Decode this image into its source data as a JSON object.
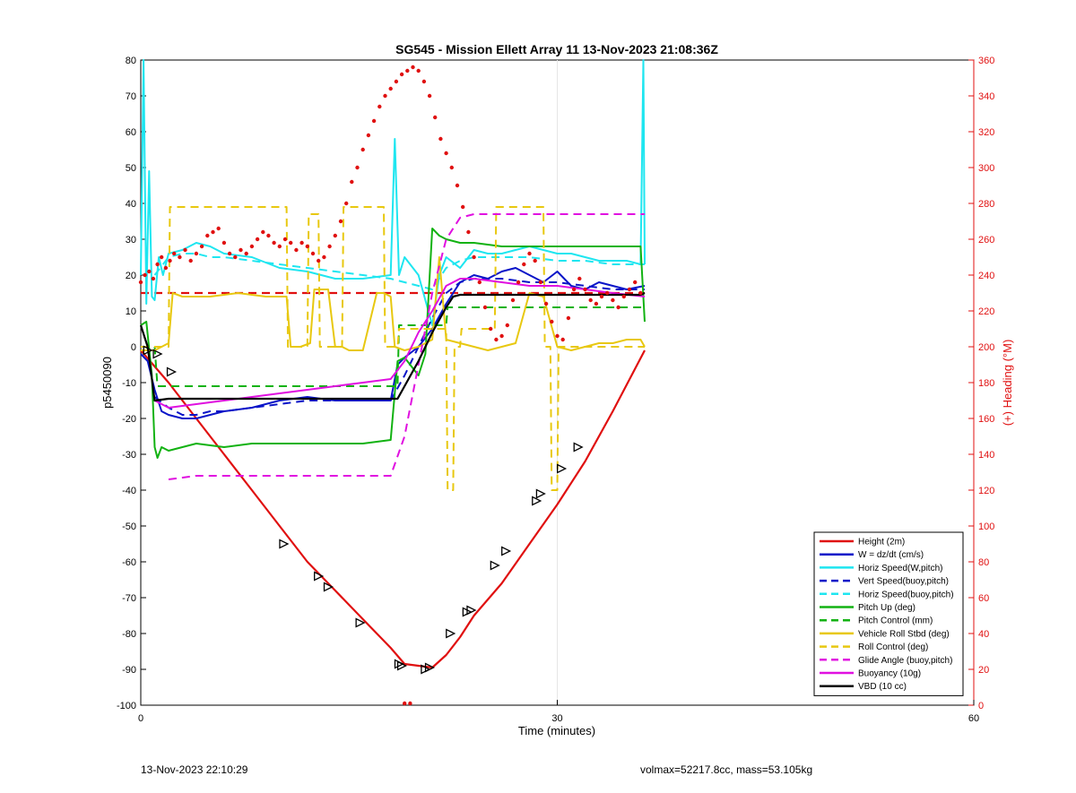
{
  "footer": {
    "timestamp": "13-Nov-2023 22:10:29",
    "volmax_mass": "volmax=52217.8cc, mass=53.105kg"
  },
  "chart_data": {
    "type": "line",
    "title": "SG545 - Mission Ellett Array 11 13-Nov-2023 21:08:36Z",
    "xlabel": "Time (minutes)",
    "ylabel": "p5450090",
    "y2label": "(+) Heading (°M)",
    "xlim": [
      0,
      60
    ],
    "ylim": [
      -100,
      80
    ],
    "y2lim": [
      0,
      360
    ],
    "xticks": [
      0,
      30,
      60
    ],
    "yticks": [
      -100,
      -90,
      -80,
      -70,
      -60,
      -50,
      -40,
      -30,
      -20,
      -10,
      0,
      10,
      20,
      30,
      40,
      50,
      60,
      70,
      80
    ],
    "y2ticks": [
      0,
      20,
      40,
      60,
      80,
      100,
      120,
      140,
      160,
      180,
      200,
      220,
      240,
      260,
      280,
      300,
      320,
      340,
      360
    ],
    "grid": "x-only",
    "legend_position": "bottom-right",
    "series": [
      {
        "name": "Height (2m)",
        "color": "#e01010",
        "style": "solid",
        "width": 2.2,
        "x": [
          0,
          2,
          4,
          6,
          8,
          10,
          12,
          14,
          16,
          18,
          19,
          20,
          21,
          22,
          23,
          24,
          26,
          28,
          30,
          32,
          34,
          36.3
        ],
        "y": [
          -1,
          -10,
          -20,
          -30,
          -40,
          -50,
          -60,
          -68,
          -76,
          -84,
          -88.5,
          -89,
          -89.5,
          -86,
          -81,
          -75,
          -66,
          -55,
          -44,
          -32,
          -18,
          -1
        ]
      },
      {
        "name": "W = dz/dt (cm/s)",
        "color": "#0a14c8",
        "style": "solid",
        "width": 2,
        "x": [
          0,
          0.5,
          1,
          1.5,
          2,
          3,
          4,
          5,
          6,
          8,
          10,
          12,
          14,
          16,
          18,
          18.5,
          19,
          20,
          21,
          22,
          23,
          24,
          25,
          26,
          27,
          28,
          29,
          30,
          31,
          32,
          33,
          34,
          35,
          36.3
        ],
        "y": [
          -2,
          -4,
          -12,
          -18,
          -19,
          -20,
          -20,
          -19,
          -18,
          -17,
          -15,
          -14,
          -15,
          -15,
          -15,
          -5,
          -3,
          0,
          5,
          12,
          18,
          20,
          19,
          21,
          22,
          20,
          18,
          21,
          17,
          16,
          18,
          17,
          16,
          17
        ]
      },
      {
        "name": "Horiz Speed(W,pitch)",
        "color": "#1ee6f0",
        "style": "solid",
        "width": 2,
        "x": [
          0,
          0.2,
          0.4,
          0.6,
          0.8,
          1,
          1.3,
          1.6,
          2,
          3,
          4,
          5,
          6,
          8,
          10,
          12,
          14,
          16,
          18,
          18.3,
          18.6,
          19,
          20,
          21,
          21.5,
          22,
          23,
          24,
          25,
          26,
          27,
          28,
          29,
          30,
          31,
          32,
          33,
          34,
          35,
          36,
          36.2,
          36.3
        ],
        "y": [
          20,
          80,
          12,
          49,
          14,
          13,
          25,
          20,
          26,
          27,
          29,
          28,
          26,
          25,
          22,
          21,
          19,
          19,
          20,
          58,
          20,
          25,
          20,
          6,
          20,
          25,
          22,
          27,
          26,
          26,
          27,
          28,
          27,
          26,
          26,
          25,
          24,
          24,
          24,
          23,
          80,
          23
        ]
      },
      {
        "name": "Vert Speed(buoy,pitch)",
        "color": "#0a14c8",
        "style": "dashed",
        "width": 2,
        "x": [
          1,
          2,
          3,
          4,
          5,
          6,
          8,
          10,
          12,
          14,
          16,
          18,
          19,
          20,
          21,
          22,
          23,
          24,
          25,
          26,
          28,
          30,
          32,
          34,
          36.3
        ],
        "y": [
          -14,
          -17,
          -19,
          -19,
          -18,
          -18,
          -17,
          -16,
          -15,
          -15,
          -15,
          -15,
          -8,
          0,
          8,
          15,
          18,
          19,
          19,
          19,
          18,
          18,
          17,
          16,
          16
        ]
      },
      {
        "name": "Horiz Speed(buoy,pitch)",
        "color": "#1ee6f0",
        "style": "dashed",
        "width": 2,
        "x": [
          1,
          2,
          3,
          4,
          5,
          6,
          8,
          10,
          12,
          14,
          16,
          18,
          19,
          20,
          21,
          22,
          23,
          24,
          26,
          28,
          30,
          32,
          34,
          36.3
        ],
        "y": [
          20,
          25,
          26,
          26,
          25,
          25,
          24,
          23,
          22,
          21,
          20,
          19,
          18,
          17,
          16,
          22,
          24,
          25,
          25,
          25,
          24,
          24,
          23,
          23
        ]
      },
      {
        "name": "Pitch Up (deg)",
        "color": "#12b212",
        "style": "solid",
        "width": 2,
        "x": [
          0,
          0.4,
          0.8,
          1,
          1.2,
          1.5,
          2,
          3,
          4,
          6,
          8,
          10,
          12,
          14,
          16,
          18,
          18.5,
          19,
          20,
          20.5,
          21,
          21.5,
          22,
          23,
          24,
          26,
          28,
          30,
          32,
          34,
          36,
          36.3
        ],
        "y": [
          6,
          7,
          -8,
          -28,
          -31,
          -28,
          -29,
          -28,
          -27,
          -28,
          -27,
          -27,
          -27,
          -27,
          -27,
          -26,
          -4,
          -3,
          -8,
          -2,
          33,
          31,
          30,
          29,
          29,
          28,
          28,
          28,
          28,
          28,
          28,
          7
        ]
      },
      {
        "name": "Pitch Control (mm)",
        "color": "#12b212",
        "style": "dashed",
        "width": 2,
        "x": [
          0,
          1,
          1.2,
          18.5,
          18.6,
          22,
          22.1,
          36.3
        ],
        "y": [
          0,
          0,
          -11,
          -11,
          6,
          6,
          11,
          11
        ]
      },
      {
        "name": "Vehicle Roll Stbd (deg)",
        "color": "#e8c810",
        "style": "solid",
        "width": 2,
        "x": [
          0,
          1,
          2,
          2.3,
          3,
          5,
          7,
          9,
          10.5,
          10.8,
          11.5,
          12.2,
          12.5,
          13.5,
          14,
          14.5,
          15,
          16,
          17,
          17.5,
          18,
          18.3,
          19,
          20,
          21,
          21.5,
          22,
          23,
          24,
          25,
          26,
          27,
          28,
          29,
          30,
          31,
          32,
          33,
          34,
          35,
          36,
          36.3
        ],
        "y": [
          -1,
          -1,
          1,
          15,
          14,
          14,
          15,
          14,
          14,
          0,
          0,
          1,
          16,
          16,
          0,
          0,
          -1,
          -1,
          15,
          15,
          14,
          0,
          -1,
          0,
          2,
          25,
          2,
          1,
          0,
          -1,
          0,
          1,
          15,
          14,
          0,
          -1,
          0,
          1,
          1,
          2,
          2,
          0
        ]
      },
      {
        "name": "Roll Control (deg)",
        "color": "#e8c810",
        "style": "dashed",
        "width": 2,
        "x": [
          0,
          2,
          2.1,
          10.5,
          10.6,
          12,
          12.1,
          12.8,
          12.9,
          14.5,
          14.6,
          17.5,
          17.6,
          18.5,
          18.6,
          22,
          22.1,
          22.5,
          22.6,
          23,
          23.1,
          25.5,
          25.6,
          29,
          29.1,
          29.5,
          29.6,
          30,
          30.1,
          36.3
        ],
        "y": [
          0,
          0,
          39,
          39,
          0,
          0,
          37,
          37,
          0,
          0,
          39,
          39,
          0,
          0,
          5,
          5,
          -40,
          -40,
          0,
          0,
          5,
          5,
          39,
          39,
          0,
          0,
          -40,
          -40,
          0,
          0
        ]
      },
      {
        "name": "Glide Angle (buoy,pitch)",
        "color": "#e010e0",
        "style": "dashed",
        "width": 2,
        "x": [
          2,
          4,
          6,
          8,
          10,
          12,
          14,
          16,
          18,
          19,
          20,
          21,
          22,
          23,
          24,
          26,
          28,
          30,
          32,
          34,
          36.3
        ],
        "y": [
          -37,
          -36,
          -36,
          -36,
          -36,
          -36,
          -36,
          -36,
          -36,
          -25,
          -5,
          15,
          30,
          36,
          37,
          37,
          37,
          37,
          37,
          37,
          37
        ]
      },
      {
        "name": "Buoyancy (10g)",
        "color": "#e010e0",
        "style": "solid",
        "width": 2,
        "x": [
          1,
          2,
          4,
          6,
          8,
          10,
          12,
          14,
          16,
          18,
          19,
          20,
          21,
          22,
          23,
          24,
          26,
          28,
          30,
          32,
          34,
          36.3
        ],
        "y": [
          -15,
          -17,
          -16,
          -15,
          -14,
          -13,
          -12,
          -11,
          -10,
          -9,
          -4,
          4,
          10,
          17,
          19,
          19,
          18,
          17,
          17,
          16,
          15,
          14
        ]
      },
      {
        "name": "VBD (10 cc)",
        "color": "#000000",
        "style": "solid",
        "width": 2.2,
        "x": [
          0,
          0.5,
          1,
          2,
          5,
          10,
          15,
          18,
          18.5,
          20,
          21,
          22,
          22.5,
          23,
          25,
          30,
          36,
          36.3
        ],
        "y": [
          6,
          0,
          -15,
          -14.5,
          -14.5,
          -14.5,
          -14.5,
          -14.5,
          -14.5,
          -4,
          4,
          11,
          14,
          14.5,
          14.5,
          14.5,
          14.5,
          15
        ]
      }
    ],
    "markers": {
      "name": "Height (2m) markers",
      "color": "#000000",
      "x": [
        0.5,
        1.2,
        2.2,
        10.3,
        12.8,
        13.5,
        15.8,
        18.6,
        18.8,
        20.5,
        20.8,
        22.3,
        23.5,
        23.8,
        25.5,
        26.3,
        28.5,
        28.8,
        30.3,
        31.5
      ],
      "y": [
        -1,
        -2,
        -7,
        -55,
        -64,
        -67,
        -77,
        -88.5,
        -89,
        -90,
        -89.5,
        -80,
        -74,
        -73.5,
        -61,
        -57,
        -43,
        -41,
        -34,
        -28
      ]
    },
    "heading": {
      "name": "Heading",
      "color": "#e01010",
      "axis": "right",
      "points": [
        [
          0,
          236
        ],
        [
          0.3,
          240
        ],
        [
          0.6,
          242
        ],
        [
          0.9,
          238
        ],
        [
          1.2,
          246
        ],
        [
          1.5,
          250
        ],
        [
          1.8,
          244
        ],
        [
          2.1,
          248
        ],
        [
          2.4,
          252
        ],
        [
          2.8,
          250
        ],
        [
          3.2,
          254
        ],
        [
          3.6,
          248
        ],
        [
          4.0,
          252
        ],
        [
          4.4,
          256
        ],
        [
          4.8,
          262
        ],
        [
          5.2,
          264
        ],
        [
          5.6,
          266
        ],
        [
          6.0,
          258
        ],
        [
          6.4,
          252
        ],
        [
          6.8,
          250
        ],
        [
          7.2,
          254
        ],
        [
          7.6,
          252
        ],
        [
          8.0,
          256
        ],
        [
          8.4,
          260
        ],
        [
          8.8,
          264
        ],
        [
          9.2,
          262
        ],
        [
          9.6,
          258
        ],
        [
          10.0,
          256
        ],
        [
          10.4,
          260
        ],
        [
          10.8,
          258
        ],
        [
          11.2,
          254
        ],
        [
          11.6,
          258
        ],
        [
          12.0,
          256
        ],
        [
          12.4,
          252
        ],
        [
          12.8,
          248
        ],
        [
          13.2,
          250
        ],
        [
          13.6,
          256
        ],
        [
          14.0,
          262
        ],
        [
          14.4,
          270
        ],
        [
          14.8,
          280
        ],
        [
          15.2,
          292
        ],
        [
          15.6,
          300
        ],
        [
          16.0,
          310
        ],
        [
          16.4,
          318
        ],
        [
          16.8,
          326
        ],
        [
          17.2,
          334
        ],
        [
          17.6,
          340
        ],
        [
          18.0,
          344
        ],
        [
          18.4,
          348
        ],
        [
          18.8,
          352
        ],
        [
          19.2,
          354
        ],
        [
          19.6,
          356
        ],
        [
          20.0,
          354
        ],
        [
          20.4,
          348
        ],
        [
          20.8,
          340
        ],
        [
          21.2,
          328
        ],
        [
          21.6,
          316
        ],
        [
          22.0,
          308
        ],
        [
          22.4,
          300
        ],
        [
          22.8,
          290
        ],
        [
          23.2,
          278
        ],
        [
          23.6,
          264
        ],
        [
          24.0,
          250
        ],
        [
          24.4,
          236
        ],
        [
          24.8,
          222
        ],
        [
          25.2,
          210
        ],
        [
          25.6,
          204
        ],
        [
          26.0,
          206
        ],
        [
          26.4,
          212
        ],
        [
          26.8,
          226
        ],
        [
          27.2,
          236
        ],
        [
          27.6,
          246
        ],
        [
          28.0,
          252
        ],
        [
          28.4,
          248
        ],
        [
          28.8,
          236
        ],
        [
          29.2,
          224
        ],
        [
          29.6,
          214
        ],
        [
          30.0,
          206
        ],
        [
          30.4,
          204
        ],
        [
          30.8,
          216
        ],
        [
          31.2,
          232
        ],
        [
          31.6,
          238
        ],
        [
          32.0,
          232
        ],
        [
          32.4,
          226
        ],
        [
          32.8,
          224
        ],
        [
          33.2,
          228
        ],
        [
          33.6,
          230
        ],
        [
          34.0,
          226
        ],
        [
          34.4,
          222
        ],
        [
          34.8,
          228
        ],
        [
          35.2,
          232
        ],
        [
          35.6,
          236
        ],
        [
          36.0,
          230
        ],
        [
          19.0,
          1
        ],
        [
          19.4,
          1
        ]
      ],
      "reference_line": 230
    }
  }
}
